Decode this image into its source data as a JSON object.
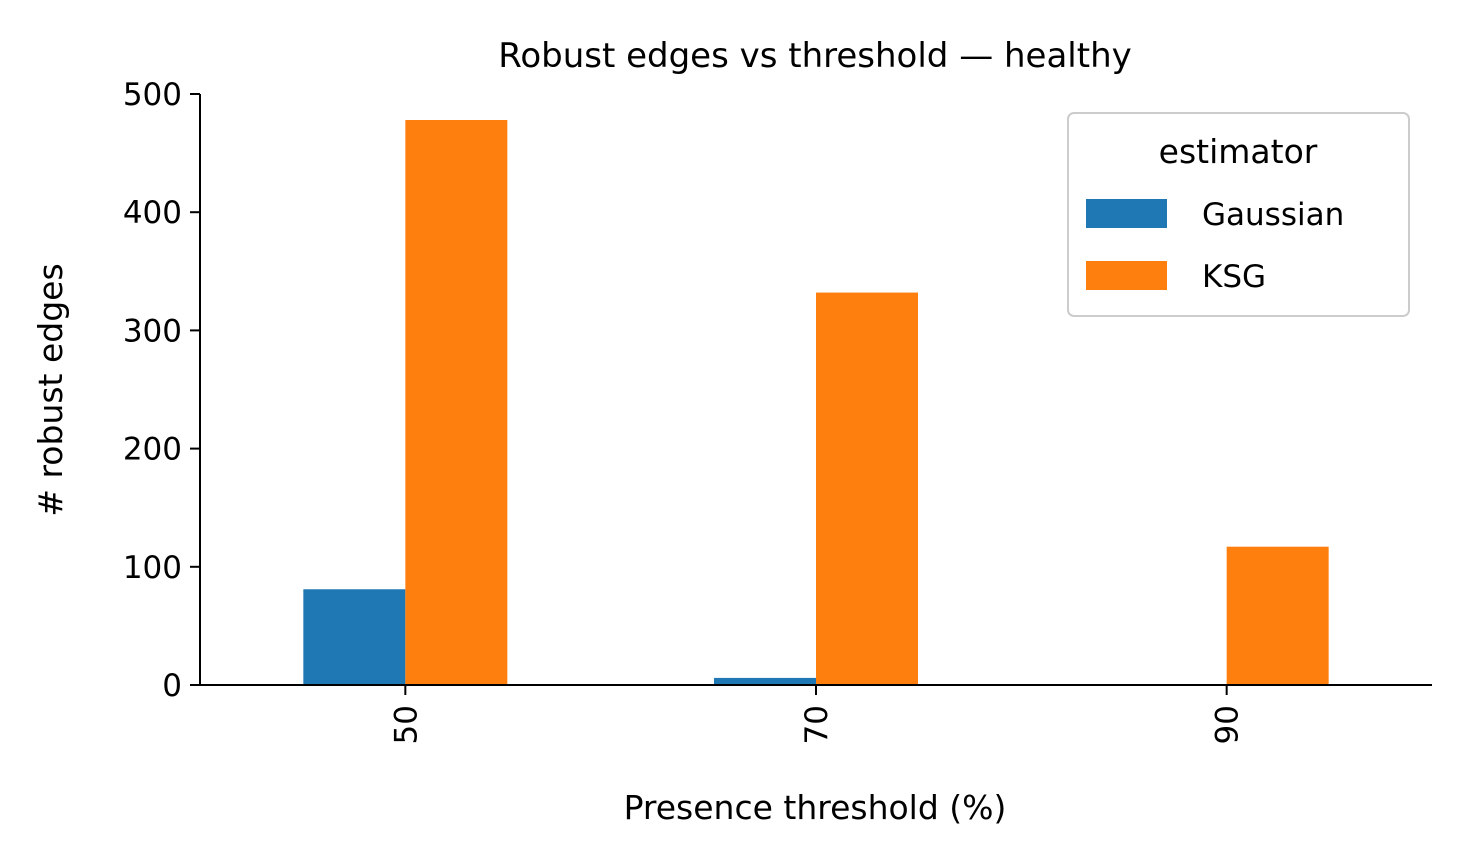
{
  "chart_data": {
    "type": "bar",
    "title": "Robust edges vs threshold — healthy",
    "xlabel": "Presence threshold (%)",
    "ylabel": "# robust edges",
    "categories": [
      "50",
      "70",
      "90"
    ],
    "series": [
      {
        "name": "Gaussian",
        "color": "#1f77b4",
        "values": [
          81,
          6,
          0
        ]
      },
      {
        "name": "KSG",
        "color": "#ff7f0e",
        "values": [
          478,
          332,
          117
        ]
      }
    ],
    "ylim": [
      0,
      500
    ],
    "yticks": [
      "0",
      "100",
      "200",
      "300",
      "400",
      "500"
    ],
    "legend": {
      "title": "estimator",
      "position": "top-right"
    },
    "grid": false
  }
}
